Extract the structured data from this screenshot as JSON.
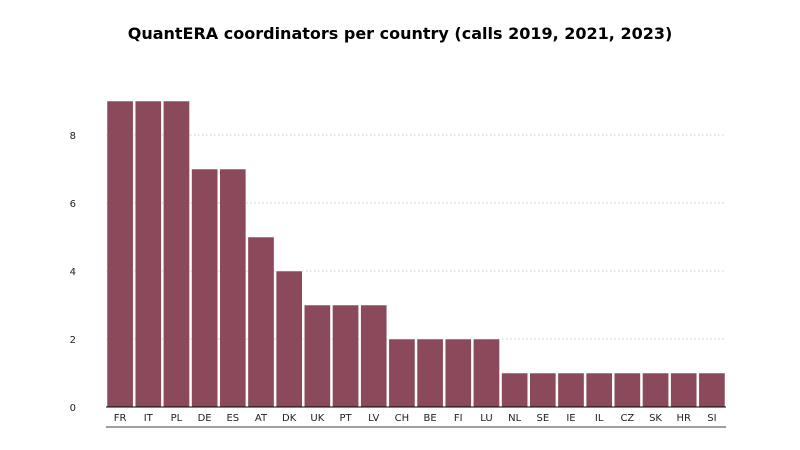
{
  "chart_data": {
    "type": "bar",
    "title": "QuantERA coordinators per country (calls 2019, 2021, 2023)",
    "xlabel": "",
    "ylabel": "",
    "categories": [
      "FR",
      "IT",
      "PL",
      "DE",
      "ES",
      "AT",
      "DK",
      "UK",
      "PT",
      "LV",
      "CH",
      "BE",
      "FI",
      "LU",
      "NL",
      "SE",
      "IE",
      "IL",
      "CZ",
      "SK",
      "HR",
      "SI"
    ],
    "values": [
      9,
      9,
      9,
      7,
      7,
      5,
      4,
      3,
      3,
      3,
      2,
      2,
      2,
      2,
      1,
      1,
      1,
      1,
      1,
      1,
      1,
      1
    ],
    "ylim": [
      0,
      10
    ],
    "yticks": [
      0,
      2,
      4,
      6,
      8
    ],
    "grid": true,
    "grid_style": "dotted horizontal",
    "legend": "none",
    "colors": {
      "bar": "#8a4a5b",
      "bar_stroke": "#ffffff",
      "grid": "#bbbbbb",
      "axis": "#000000"
    }
  }
}
